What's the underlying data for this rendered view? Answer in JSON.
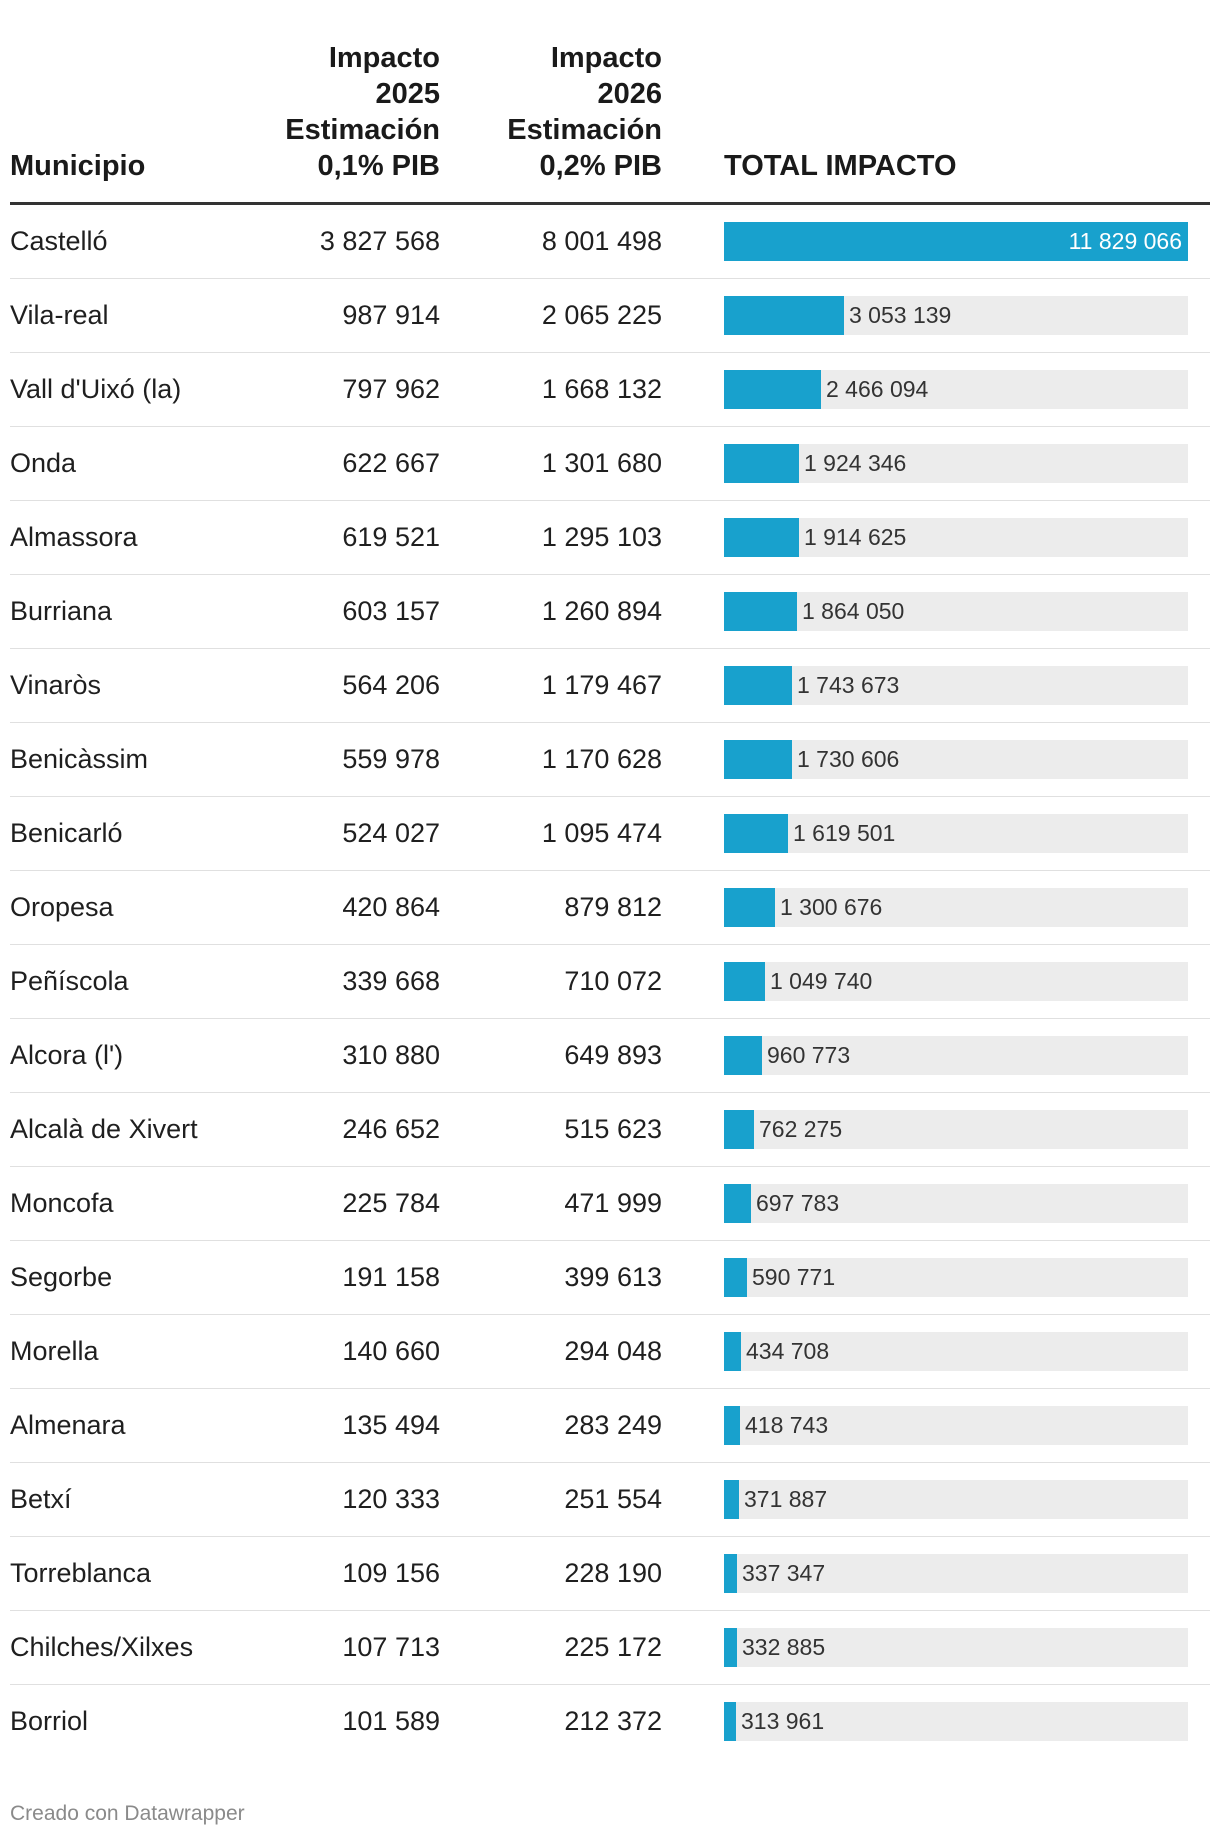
{
  "header": {
    "municipio": "Municipio",
    "col2025": [
      "Impacto",
      "2025",
      "Estimación",
      "0,1% PIB"
    ],
    "col2026": [
      "Impacto",
      "2026",
      "Estimación",
      "0,2% PIB"
    ],
    "total": "TOTAL IMPACTO"
  },
  "footer": {
    "credit": "Creado con Datawrapper"
  },
  "colors": {
    "bar": "#18a1cd",
    "track": "#ececec",
    "rule": "#333333"
  },
  "chart_data": {
    "type": "table",
    "columns": [
      "Municipio",
      "Impacto 2025 Estimación 0,1% PIB",
      "Impacto 2026 Estimación 0,2% PIB",
      "TOTAL IMPACTO"
    ],
    "bar_column": "TOTAL IMPACTO",
    "bar_max": 11829066,
    "rows": [
      {
        "municipio": "Castelló",
        "v2025": "3 827 568",
        "v2026": "8 001 498",
        "total_label": "11 829 066",
        "total": 11829066
      },
      {
        "municipio": "Vila-real",
        "v2025": "987 914",
        "v2026": "2 065 225",
        "total_label": "3 053 139",
        "total": 3053139
      },
      {
        "municipio": "Vall d'Uixó (la)",
        "v2025": "797 962",
        "v2026": "1 668 132",
        "total_label": "2 466 094",
        "total": 2466094
      },
      {
        "municipio": "Onda",
        "v2025": "622 667",
        "v2026": "1 301 680",
        "total_label": "1 924 346",
        "total": 1924346
      },
      {
        "municipio": "Almassora",
        "v2025": "619 521",
        "v2026": "1 295 103",
        "total_label": "1 914 625",
        "total": 1914625
      },
      {
        "municipio": "Burriana",
        "v2025": "603 157",
        "v2026": "1 260 894",
        "total_label": "1 864 050",
        "total": 1864050
      },
      {
        "municipio": "Vinaròs",
        "v2025": "564 206",
        "v2026": "1 179 467",
        "total_label": "1 743 673",
        "total": 1743673
      },
      {
        "municipio": "Benicàssim",
        "v2025": "559 978",
        "v2026": "1 170 628",
        "total_label": "1 730 606",
        "total": 1730606
      },
      {
        "municipio": "Benicarló",
        "v2025": "524 027",
        "v2026": "1 095 474",
        "total_label": "1 619 501",
        "total": 1619501
      },
      {
        "municipio": "Oropesa",
        "v2025": "420 864",
        "v2026": "879 812",
        "total_label": "1 300 676",
        "total": 1300676
      },
      {
        "municipio": "Peñíscola",
        "v2025": "339 668",
        "v2026": "710 072",
        "total_label": "1 049 740",
        "total": 1049740
      },
      {
        "municipio": "Alcora (l')",
        "v2025": "310 880",
        "v2026": "649 893",
        "total_label": "960 773",
        "total": 960773
      },
      {
        "municipio": "Alcalà de Xivert",
        "v2025": "246 652",
        "v2026": "515 623",
        "total_label": "762 275",
        "total": 762275
      },
      {
        "municipio": "Moncofa",
        "v2025": "225 784",
        "v2026": "471 999",
        "total_label": "697 783",
        "total": 697783
      },
      {
        "municipio": "Segorbe",
        "v2025": "191 158",
        "v2026": "399 613",
        "total_label": "590 771",
        "total": 590771
      },
      {
        "municipio": "Morella",
        "v2025": "140 660",
        "v2026": "294 048",
        "total_label": "434 708",
        "total": 434708
      },
      {
        "municipio": "Almenara",
        "v2025": "135 494",
        "v2026": "283 249",
        "total_label": "418 743",
        "total": 418743
      },
      {
        "municipio": "Betxí",
        "v2025": "120 333",
        "v2026": "251 554",
        "total_label": "371 887",
        "total": 371887
      },
      {
        "municipio": "Torreblanca",
        "v2025": "109 156",
        "v2026": "228 190",
        "total_label": "337 347",
        "total": 337347
      },
      {
        "municipio": "Chilches/Xilxes",
        "v2025": "107 713",
        "v2026": "225 172",
        "total_label": "332 885",
        "total": 332885
      },
      {
        "municipio": "Borriol",
        "v2025": "101 589",
        "v2026": "212 372",
        "total_label": "313 961",
        "total": 313961
      }
    ]
  }
}
